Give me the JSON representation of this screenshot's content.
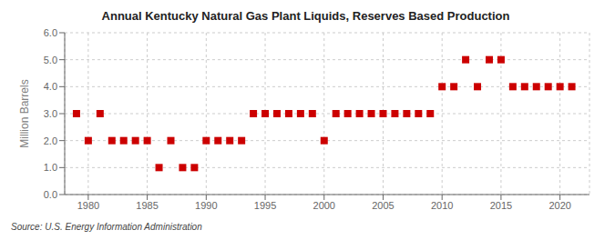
{
  "chart_data": {
    "type": "scatter",
    "title": "Annual Kentucky Natural Gas Plant Liquids, Reserves Based Production",
    "y_label": "Million Barrels",
    "annotations": [
      "Source: U.S. Energy Information Administration"
    ],
    "x": [
      1979,
      1980,
      1981,
      1982,
      1983,
      1984,
      1985,
      1986,
      1987,
      1988,
      1989,
      1990,
      1991,
      1992,
      1993,
      1994,
      1995,
      1996,
      1997,
      1998,
      1999,
      2000,
      2001,
      2002,
      2003,
      2004,
      2005,
      2006,
      2007,
      2008,
      2009,
      2010,
      2011,
      2012,
      2013,
      2014,
      2015,
      2016,
      2017,
      2018,
      2019,
      2020,
      2021
    ],
    "values": [
      3.0,
      2.0,
      3.0,
      2.0,
      2.0,
      2.0,
      2.0,
      1.0,
      2.0,
      1.0,
      1.0,
      2.0,
      2.0,
      2.0,
      2.0,
      3.0,
      3.0,
      3.0,
      3.0,
      3.0,
      3.0,
      2.0,
      3.0,
      3.0,
      3.0,
      3.0,
      3.0,
      3.0,
      3.0,
      3.0,
      3.0,
      4.0,
      4.0,
      5.0,
      4.0,
      5.0,
      5.0,
      4.0,
      4.0,
      4.0,
      4.0,
      4.0,
      4.0
    ],
    "color": "#cc0000",
    "marker": "square",
    "xlim": [
      1978,
      2022.5
    ],
    "xticks": [
      1980,
      1985,
      1990,
      1995,
      2000,
      2005,
      2010,
      2015,
      2020
    ],
    "ylim": [
      0.0,
      6.0
    ],
    "yticks": [
      {
        "value": 0,
        "label": "0.0"
      },
      {
        "value": 1,
        "label": "1.0"
      },
      {
        "value": 2,
        "label": "2.0"
      },
      {
        "value": 3,
        "label": "3.0"
      },
      {
        "value": 4,
        "label": "4.0"
      },
      {
        "value": 5,
        "label": "5.0"
      },
      {
        "value": 6,
        "label": "6.0"
      }
    ],
    "grid": true
  }
}
